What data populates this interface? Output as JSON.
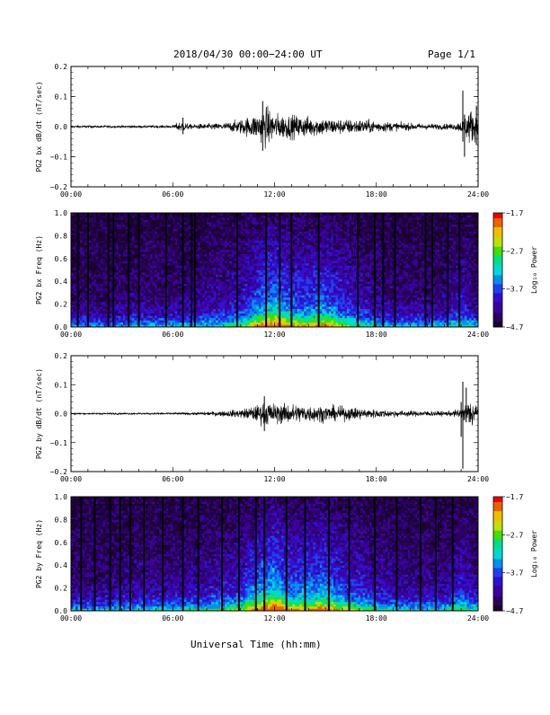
{
  "header": {
    "title": "2018/04/30  00:00−24:00 UT",
    "page": "Page 1/1"
  },
  "xaxis_label": "Universal Time (hh:mm)",
  "colorbar": {
    "title": "Log₁₀ Power",
    "ticks": [
      "−1.7",
      "−2.7",
      "−3.7",
      "−4.7"
    ]
  },
  "chart_data": [
    {
      "type": "line",
      "id": "bx_waveform",
      "ylabel": "PG2 bx dB/dt (nT/sec)",
      "xlim": [
        "00:00",
        "24:00"
      ],
      "x_ticks": [
        "00:00",
        "06:00",
        "12:00",
        "18:00",
        "24:00"
      ],
      "ylim": [
        -0.2,
        0.2
      ],
      "y_ticks": [
        "0.2",
        "0.1",
        "0.0",
        "−0.1",
        "−0.2"
      ],
      "series": [
        {
          "x_hours": [
            0,
            2,
            4,
            6,
            6.5,
            7,
            8,
            9,
            10,
            11,
            11.5,
            12,
            13,
            14,
            15,
            16,
            17,
            18,
            19,
            20,
            21,
            22,
            22.5,
            23,
            23.5,
            24
          ],
          "envelope": [
            0.004,
            0.004,
            0.004,
            0.005,
            0.02,
            0.008,
            0.01,
            0.012,
            0.025,
            0.045,
            0.07,
            0.045,
            0.04,
            0.035,
            0.03,
            0.025,
            0.025,
            0.02,
            0.015,
            0.012,
            0.01,
            0.01,
            0.01,
            0.02,
            0.06,
            0.04
          ],
          "spikes": [
            {
              "t": 6.6,
              "min": -0.025,
              "max": 0.03
            },
            {
              "t": 11.3,
              "min": -0.08,
              "max": 0.085
            },
            {
              "t": 23.1,
              "min": -0.05,
              "max": 0.12
            },
            {
              "t": 23.2,
              "min": -0.1,
              "max": 0.04
            },
            {
              "t": 23.9,
              "min": -0.06,
              "max": 0.07
            }
          ]
        }
      ]
    },
    {
      "type": "heatmap",
      "id": "bx_spectrogram",
      "ylabel": "PG2 bx Freq (Hz)",
      "xlim": [
        "00:00",
        "24:00"
      ],
      "x_ticks": [
        "00:00",
        "06:00",
        "12:00",
        "18:00",
        "24:00"
      ],
      "ylim": [
        0.0,
        1.0
      ],
      "y_ticks": [
        "1.0",
        "0.8",
        "0.6",
        "0.4",
        "0.2",
        "0.0"
      ],
      "zlim": [
        -4.7,
        -1.7
      ],
      "z_label": "Log₁₀ Power",
      "activity_hours": [
        0,
        2,
        4,
        6,
        8,
        10,
        11,
        12,
        13,
        14,
        15,
        16,
        18,
        20,
        22,
        23,
        24
      ],
      "activity_level": [
        0.15,
        0.15,
        0.2,
        0.2,
        0.25,
        0.35,
        0.6,
        0.75,
        0.55,
        0.55,
        0.6,
        0.45,
        0.25,
        0.2,
        0.2,
        0.35,
        0.2
      ],
      "gap_hours": [
        0.4,
        1.0,
        2.2,
        2.5,
        3.4,
        4.0,
        5.6,
        6.6,
        7.1,
        7.3,
        9.8,
        11.5,
        12.3,
        13.0,
        14.6,
        16.9,
        17.9,
        18.4,
        19.1,
        20.9,
        21.3,
        22.2,
        22.9
      ]
    },
    {
      "type": "line",
      "id": "by_waveform",
      "ylabel": "PG2 by dB/dt (nT/sec)",
      "xlim": [
        "00:00",
        "24:00"
      ],
      "x_ticks": [
        "00:00",
        "06:00",
        "12:00",
        "18:00",
        "24:00"
      ],
      "ylim": [
        -0.2,
        0.2
      ],
      "y_ticks": [
        "0.2",
        "0.1",
        "0.0",
        "−0.1",
        "−0.2"
      ],
      "series": [
        {
          "x_hours": [
            0,
            2,
            4,
            6,
            7,
            8,
            9,
            10,
            11,
            11.5,
            12,
            13,
            14,
            15,
            16,
            17,
            18,
            19,
            20,
            21,
            22,
            22.5,
            23,
            23.5,
            24
          ],
          "envelope": [
            0.003,
            0.003,
            0.003,
            0.004,
            0.004,
            0.006,
            0.01,
            0.015,
            0.03,
            0.045,
            0.035,
            0.035,
            0.03,
            0.028,
            0.025,
            0.02,
            0.015,
            0.012,
            0.01,
            0.01,
            0.008,
            0.01,
            0.02,
            0.05,
            0.04
          ],
          "spikes": [
            {
              "t": 11.4,
              "min": -0.06,
              "max": 0.06
            },
            {
              "t": 23.0,
              "min": -0.08,
              "max": 0.04
            },
            {
              "t": 23.1,
              "min": -0.19,
              "max": 0.11
            },
            {
              "t": 23.3,
              "min": -0.03,
              "max": 0.09
            }
          ]
        }
      ]
    },
    {
      "type": "heatmap",
      "id": "by_spectrogram",
      "ylabel": "PG2 by Freq (Hz)",
      "xlim": [
        "00:00",
        "24:00"
      ],
      "x_ticks": [
        "00:00",
        "06:00",
        "12:00",
        "18:00",
        "24:00"
      ],
      "ylim": [
        0.0,
        1.0
      ],
      "y_ticks": [
        "1.0",
        "0.8",
        "0.6",
        "0.4",
        "0.2",
        "0.0"
      ],
      "zlim": [
        -4.7,
        -1.7
      ],
      "z_label": "Log₁₀ Power",
      "activity_hours": [
        0,
        2,
        4,
        6,
        8,
        10,
        11,
        12,
        13,
        14,
        15,
        16,
        18,
        20,
        22,
        23,
        24
      ],
      "activity_level": [
        0.2,
        0.2,
        0.25,
        0.25,
        0.3,
        0.4,
        0.65,
        0.8,
        0.55,
        0.6,
        0.65,
        0.5,
        0.3,
        0.25,
        0.25,
        0.4,
        0.25
      ],
      "gap_hours": [
        0.6,
        1.4,
        2.3,
        2.9,
        3.5,
        4.3,
        5.4,
        6.6,
        7.5,
        8.9,
        9.9,
        10.9,
        11.4,
        12.7,
        13.8,
        15.2,
        16.4,
        17.9,
        19.2,
        20.6,
        21.5,
        22.5
      ]
    }
  ],
  "colors": {
    "trace": "#000000",
    "colormap": [
      "#1a0030",
      "#2a0060",
      "#3a00a0",
      "#3010d0",
      "#2040f0",
      "#0090f0",
      "#00d8d8",
      "#00e080",
      "#40e000",
      "#c0e000",
      "#f0c000",
      "#f06000",
      "#f00000"
    ]
  }
}
